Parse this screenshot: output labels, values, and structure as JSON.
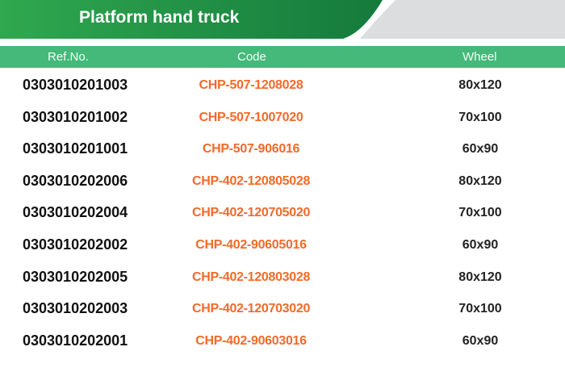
{
  "title": "Platform hand truck",
  "colors": {
    "banner_green_start": "#2fa84f",
    "banner_green_end": "#157a3c",
    "header_green": "#45b97a",
    "code_orange": "#f26a2a",
    "grey_shape": "#dcdddf"
  },
  "columns": {
    "ref": "Ref.No.",
    "code": "Code",
    "wheel": "Wheel"
  },
  "rows": [
    {
      "ref": "0303010201003",
      "code": "CHP-507-1208028",
      "wheel": "80x120"
    },
    {
      "ref": "0303010201002",
      "code": "CHP-507-1007020",
      "wheel": "70x100"
    },
    {
      "ref": "0303010201001",
      "code": "CHP-507-906016",
      "wheel": "60x90"
    },
    {
      "ref": "0303010202006",
      "code": "CHP-402-120805028",
      "wheel": "80x120"
    },
    {
      "ref": "0303010202004",
      "code": "CHP-402-120705020",
      "wheel": "70x100"
    },
    {
      "ref": "0303010202002",
      "code": "CHP-402-90605016",
      "wheel": "60x90"
    },
    {
      "ref": "0303010202005",
      "code": "CHP-402-120803028",
      "wheel": "80x120"
    },
    {
      "ref": "0303010202003",
      "code": "CHP-402-120703020",
      "wheel": "70x100"
    },
    {
      "ref": "0303010202001",
      "code": "CHP-402-90603016",
      "wheel": "60x90"
    }
  ]
}
